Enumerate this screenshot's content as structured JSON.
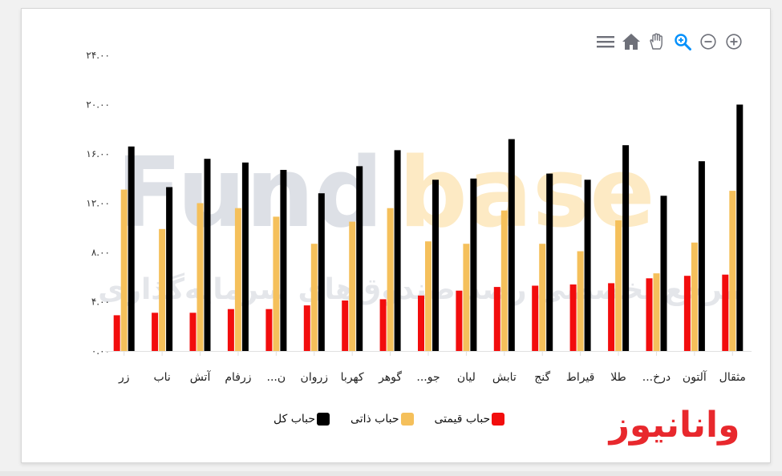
{
  "toolbar": {
    "icons": [
      "menu-icon",
      "home-icon",
      "pan-icon",
      "zoom-selection-icon",
      "zoom-out-icon",
      "zoom-in-icon"
    ]
  },
  "colors": {
    "series_1": "#f20d0d",
    "series_2": "#f5c05b",
    "series_3": "#000000",
    "watermark_grey": "#dde0e6",
    "watermark_yellow": "#fdeac4",
    "logo_red": "#e8282d"
  },
  "watermark": {
    "brand_part1": "Fund",
    "brand_part2": "base",
    "tagline": "مرجع تخصصی رصد صندوق‌های سرمایه‌گذاری"
  },
  "logo": {
    "text": "وانانیوز"
  },
  "chart_data": {
    "type": "bar",
    "categories": [
      "زر",
      "ناب",
      "آتش",
      "زرفام",
      "ن...",
      "زروان",
      "کهربا",
      "گوهر",
      "جو...",
      "لیان",
      "تابش",
      "گنج",
      "قیراط",
      "طلا",
      "درخ...",
      "آلتون",
      "مثقال"
    ],
    "series": [
      {
        "name": "حباب قیمتی",
        "color": "#f20d0d",
        "values": [
          2.9,
          3.1,
          3.1,
          3.4,
          3.4,
          3.7,
          4.1,
          4.2,
          4.5,
          4.9,
          5.2,
          5.3,
          5.4,
          5.5,
          5.9,
          6.1,
          6.2
        ]
      },
      {
        "name": "حباب ذاتی",
        "color": "#f5c05b",
        "values": [
          13.1,
          9.9,
          12.0,
          11.6,
          10.9,
          8.7,
          10.5,
          11.6,
          8.9,
          8.7,
          11.4,
          8.7,
          8.1,
          10.6,
          6.3,
          8.8,
          13.0
        ]
      },
      {
        "name": "حباب کل",
        "color": "#000000",
        "values": [
          16.6,
          13.3,
          15.6,
          15.3,
          14.7,
          12.8,
          15.0,
          16.3,
          13.9,
          14.0,
          17.2,
          14.4,
          13.9,
          16.7,
          12.6,
          15.4,
          20.0
        ]
      }
    ],
    "y_ticks": [
      "۰.۰۰",
      "۴.۰۰",
      "۸.۰۰",
      "۱۲.۰۰",
      "۱۶.۰۰",
      "۲۰.۰۰",
      "۲۴.۰۰"
    ],
    "ylim": [
      0,
      24
    ],
    "legend_position": "bottom-center",
    "grid": false
  }
}
